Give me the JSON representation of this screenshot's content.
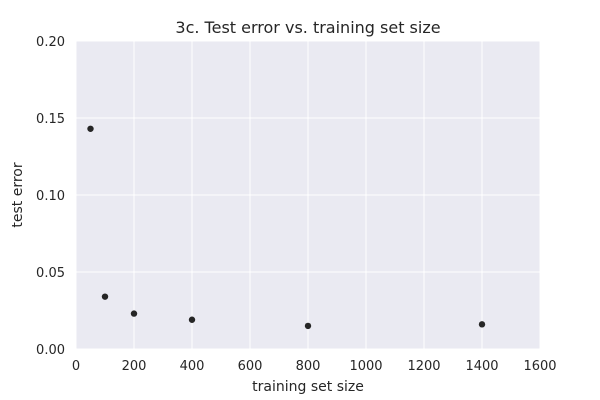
{
  "chart_data": {
    "type": "scatter",
    "title": "3c. Test error vs. training set size",
    "xlabel": "training set size",
    "ylabel": "test error",
    "xlim": [
      0,
      1600
    ],
    "ylim": [
      0,
      0.2
    ],
    "xticks": [
      0,
      200,
      400,
      600,
      800,
      1000,
      1200,
      1400,
      1600
    ],
    "xtick_labels": [
      "0",
      "200",
      "400",
      "600",
      "800",
      "1000",
      "1200",
      "1400",
      "1600"
    ],
    "yticks": [
      0,
      0.05,
      0.1,
      0.15,
      0.2
    ],
    "ytick_labels": [
      "0.00",
      "0.05",
      "0.10",
      "0.15",
      "0.20"
    ],
    "grid": true,
    "points": [
      {
        "x": 50,
        "y": 0.143
      },
      {
        "x": 100,
        "y": 0.034
      },
      {
        "x": 200,
        "y": 0.023
      },
      {
        "x": 400,
        "y": 0.019
      },
      {
        "x": 800,
        "y": 0.015
      },
      {
        "x": 1400,
        "y": 0.016
      }
    ],
    "colors": {
      "plot_background": "#EAEAF2",
      "grid": "#FFFFFF",
      "marker": "#262626",
      "text": "#262626"
    }
  }
}
